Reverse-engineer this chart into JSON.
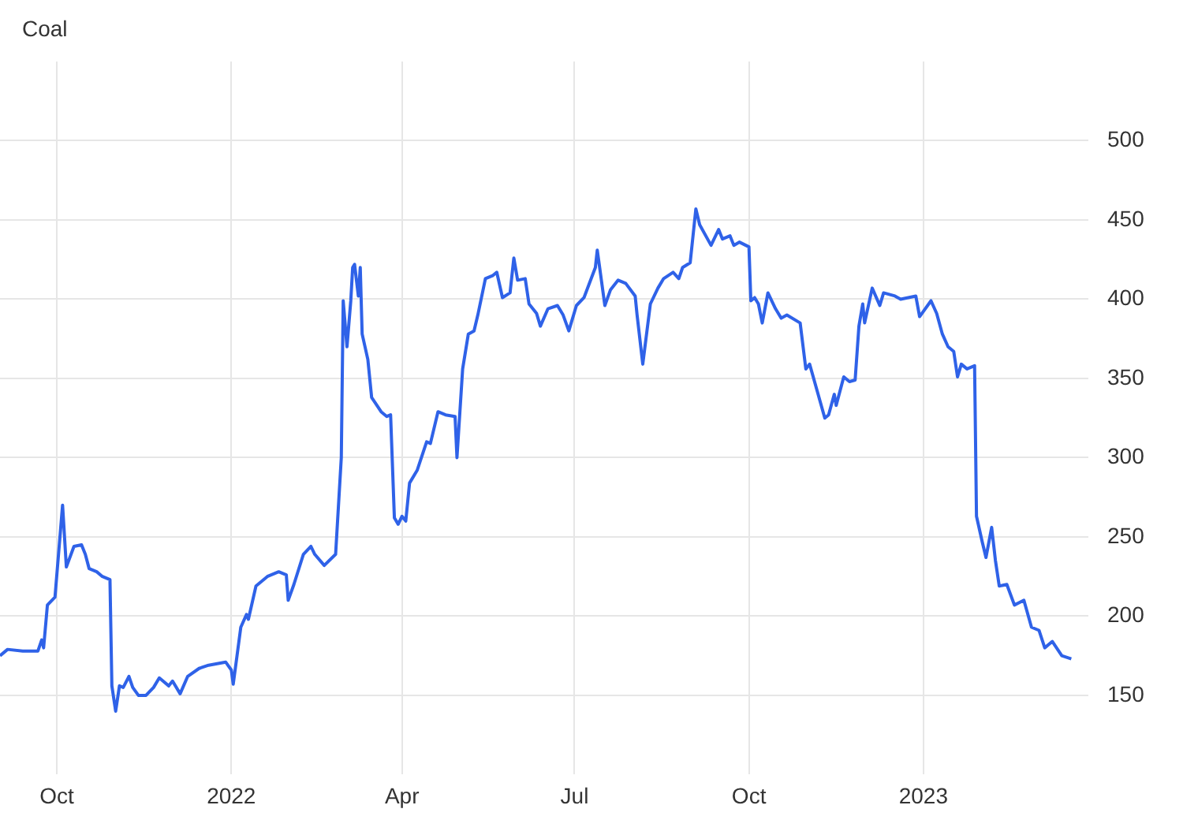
{
  "chart_data": {
    "type": "line",
    "title": "Coal",
    "x": [
      "2021-09-01",
      "2021-09-05",
      "2021-09-13",
      "2021-09-21",
      "2021-09-23",
      "2021-09-24",
      "2021-09-26",
      "2021-09-30",
      "2021-10-04",
      "2021-10-06",
      "2021-10-10",
      "2021-10-14",
      "2021-10-16",
      "2021-10-18",
      "2021-10-22",
      "2021-10-25",
      "2021-10-29",
      "2021-10-30",
      "2021-11-01",
      "2021-11-03",
      "2021-11-05",
      "2021-11-08",
      "2021-11-10",
      "2021-11-13",
      "2021-11-17",
      "2021-11-21",
      "2021-11-24",
      "2021-11-29",
      "2021-12-01",
      "2021-12-05",
      "2021-12-09",
      "2021-12-15",
      "2021-12-20",
      "2021-12-29",
      "2022-01-01",
      "2022-01-02",
      "2022-01-04",
      "2022-01-06",
      "2022-01-09",
      "2022-01-10",
      "2022-01-14",
      "2022-01-20",
      "2022-01-26",
      "2022-01-30",
      "2022-01-31",
      "2022-02-03",
      "2022-02-08",
      "2022-02-12",
      "2022-02-14",
      "2022-02-19",
      "2022-02-25",
      "2022-02-28",
      "2022-03-01",
      "2022-03-03",
      "2022-03-05",
      "2022-03-06",
      "2022-03-07",
      "2022-03-09",
      "2022-03-10",
      "2022-03-11",
      "2022-03-14",
      "2022-03-16",
      "2022-03-21",
      "2022-03-24",
      "2022-03-26",
      "2022-03-28",
      "2022-03-30",
      "2022-04-01",
      "2022-04-03",
      "2022-04-05",
      "2022-04-09",
      "2022-04-14",
      "2022-04-16",
      "2022-04-20",
      "2022-04-24",
      "2022-04-29",
      "2022-04-30",
      "2022-05-03",
      "2022-05-06",
      "2022-05-09",
      "2022-05-11",
      "2022-05-15",
      "2022-05-19",
      "2022-05-21",
      "2022-05-24",
      "2022-05-28",
      "2022-05-30",
      "2022-06-01",
      "2022-06-05",
      "2022-06-07",
      "2022-06-11",
      "2022-06-13",
      "2022-06-17",
      "2022-06-22",
      "2022-06-25",
      "2022-06-28",
      "2022-07-02",
      "2022-07-06",
      "2022-07-12",
      "2022-07-13",
      "2022-07-17",
      "2022-07-20",
      "2022-07-24",
      "2022-07-28",
      "2022-08-02",
      "2022-08-03",
      "2022-08-06",
      "2022-08-10",
      "2022-08-14",
      "2022-08-17",
      "2022-08-22",
      "2022-08-25",
      "2022-08-27",
      "2022-08-31",
      "2022-09-03",
      "2022-09-05",
      "2022-09-11",
      "2022-09-15",
      "2022-09-17",
      "2022-09-21",
      "2022-09-23",
      "2022-09-26",
      "2022-10-01",
      "2022-10-02",
      "2022-10-04",
      "2022-10-06",
      "2022-10-08",
      "2022-10-11",
      "2022-10-15",
      "2022-10-18",
      "2022-10-21",
      "2022-10-28",
      "2022-10-31",
      "2022-11-02",
      "2022-11-06",
      "2022-11-10",
      "2022-11-12",
      "2022-11-15",
      "2022-11-16",
      "2022-11-20",
      "2022-11-23",
      "2022-11-26",
      "2022-11-28",
      "2022-11-30",
      "2022-12-01",
      "2022-12-05",
      "2022-12-09",
      "2022-12-11",
      "2022-12-17",
      "2022-12-20",
      "2022-12-28",
      "2022-12-30",
      "2023-01-05",
      "2023-01-08",
      "2023-01-11",
      "2023-01-14",
      "2023-01-17",
      "2023-01-19",
      "2023-01-21",
      "2023-01-24",
      "2023-01-28",
      "2023-01-29",
      "2023-02-01",
      "2023-02-03",
      "2023-02-06",
      "2023-02-08",
      "2023-02-10",
      "2023-02-14",
      "2023-02-18",
      "2023-02-23",
      "2023-02-27",
      "2023-03-03",
      "2023-03-06",
      "2023-03-10",
      "2023-03-15",
      "2023-03-20"
    ],
    "series": [
      {
        "color": "#2f62e8",
        "values": [
          175,
          179,
          178,
          178,
          185,
          180,
          207,
          212,
          270,
          231,
          244,
          245,
          239,
          230,
          228,
          225,
          223,
          156,
          140,
          156,
          155,
          162,
          155,
          150,
          150,
          155,
          161,
          156,
          159,
          151,
          162,
          167,
          169,
          171,
          166,
          157,
          175,
          193,
          201,
          198,
          219,
          225,
          228,
          226,
          210,
          220,
          239,
          244,
          239,
          232,
          239,
          300,
          399,
          370,
          399,
          420,
          422,
          402,
          420,
          378,
          362,
          338,
          329,
          326,
          327,
          262,
          258,
          263,
          260,
          284,
          292,
          310,
          309,
          329,
          327,
          326,
          300,
          356,
          378,
          380,
          390,
          413,
          415,
          417,
          401,
          404,
          426,
          412,
          413,
          397,
          391,
          383,
          394,
          396,
          390,
          380,
          396,
          401,
          420,
          431,
          396,
          406,
          412,
          410,
          402,
          390,
          359,
          397,
          407,
          413,
          417,
          413,
          420,
          423,
          457,
          447,
          434,
          444,
          438,
          440,
          434,
          436,
          433,
          399,
          401,
          397,
          385,
          404,
          394,
          388,
          390,
          385,
          356,
          359,
          342,
          325,
          327,
          340,
          333,
          351,
          348,
          349,
          383,
          397,
          385,
          407,
          396,
          404,
          402,
          400,
          402,
          389,
          399,
          391,
          378,
          370,
          367,
          351,
          359,
          356,
          358,
          263,
          247,
          237,
          256,
          235,
          219,
          220,
          207,
          210,
          193,
          191,
          180,
          184,
          175,
          173
        ]
      }
    ],
    "xlim": [
      "2021-09-01",
      "2023-03-29"
    ],
    "xticks": [
      {
        "value": "2021-10-01",
        "label": "Oct"
      },
      {
        "value": "2022-01-01",
        "label": "2022"
      },
      {
        "value": "2022-04-01",
        "label": "Apr"
      },
      {
        "value": "2022-07-01",
        "label": "Jul"
      },
      {
        "value": "2022-10-01",
        "label": "Oct"
      },
      {
        "value": "2023-01-01",
        "label": "2023"
      }
    ],
    "ylim": [
      100,
      550
    ],
    "yticks": [
      150,
      200,
      250,
      300,
      350,
      400,
      450,
      500
    ],
    "grid": true,
    "legend": false,
    "marker": "none",
    "line_style": "solid"
  }
}
